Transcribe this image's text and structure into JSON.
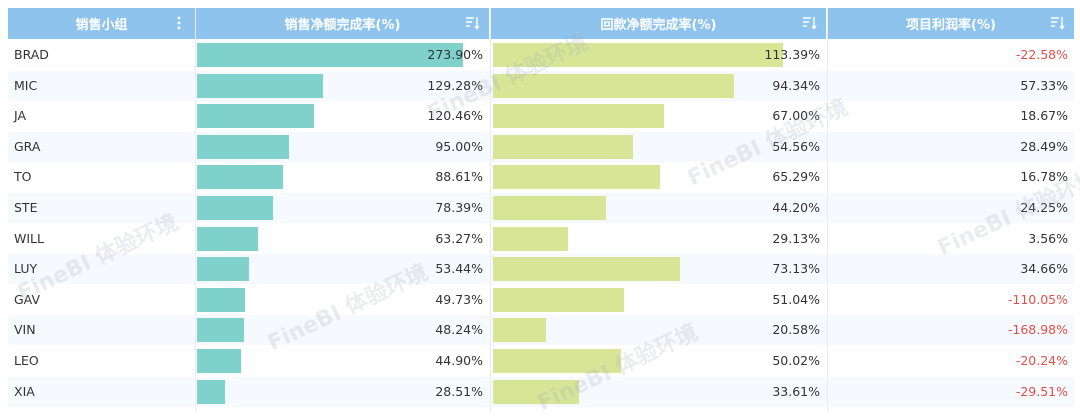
{
  "headers": {
    "col1": "销售小组",
    "col2": "销售净额完成率(%)",
    "col3": "回款净额完成率(%)",
    "col4": "项目利润率(%)"
  },
  "watermark": "FineBI 体验环境",
  "icons": {
    "col1": "more-vertical-icon",
    "col2": "sort-icon",
    "col3": "sort-icon",
    "col4": "sort-icon"
  },
  "colors": {
    "header_bg": "#8dc3ec",
    "bar_sales": "#7fd1cb",
    "bar_payment": "#d8e596",
    "negative_text": "#e0504a"
  },
  "rows": [
    {
      "name": "BRAD",
      "sales": "273.90%",
      "sales_v": 273.9,
      "payment": "113.39%",
      "payment_v": 113.39,
      "profit": "-22.58%",
      "neg": true
    },
    {
      "name": "MIC",
      "sales": "129.28%",
      "sales_v": 129.28,
      "payment": "94.34%",
      "payment_v": 94.34,
      "profit": "57.33%",
      "neg": false
    },
    {
      "name": "JA",
      "sales": "120.46%",
      "sales_v": 120.46,
      "payment": "67.00%",
      "payment_v": 67.0,
      "profit": "18.67%",
      "neg": false
    },
    {
      "name": "GRA",
      "sales": "95.00%",
      "sales_v": 95.0,
      "payment": "54.56%",
      "payment_v": 54.56,
      "profit": "28.49%",
      "neg": false
    },
    {
      "name": "TO",
      "sales": "88.61%",
      "sales_v": 88.61,
      "payment": "65.29%",
      "payment_v": 65.29,
      "profit": "16.78%",
      "neg": false
    },
    {
      "name": "STE",
      "sales": "78.39%",
      "sales_v": 78.39,
      "payment": "44.20%",
      "payment_v": 44.2,
      "profit": "24.25%",
      "neg": false
    },
    {
      "name": "WILL",
      "sales": "63.27%",
      "sales_v": 63.27,
      "payment": "29.13%",
      "payment_v": 29.13,
      "profit": "3.56%",
      "neg": false
    },
    {
      "name": "LUY",
      "sales": "53.44%",
      "sales_v": 53.44,
      "payment": "73.13%",
      "payment_v": 73.13,
      "profit": "34.66%",
      "neg": false
    },
    {
      "name": "GAV",
      "sales": "49.73%",
      "sales_v": 49.73,
      "payment": "51.04%",
      "payment_v": 51.04,
      "profit": "-110.05%",
      "neg": true
    },
    {
      "name": "VIN",
      "sales": "48.24%",
      "sales_v": 48.24,
      "payment": "20.58%",
      "payment_v": 20.58,
      "profit": "-168.98%",
      "neg": true
    },
    {
      "name": "LEO",
      "sales": "44.90%",
      "sales_v": 44.9,
      "payment": "50.02%",
      "payment_v": 50.02,
      "profit": "-20.24%",
      "neg": true
    },
    {
      "name": "XIA",
      "sales": "28.51%",
      "sales_v": 28.51,
      "payment": "33.61%",
      "payment_v": 33.61,
      "profit": "-29.51%",
      "neg": true
    }
  ]
}
